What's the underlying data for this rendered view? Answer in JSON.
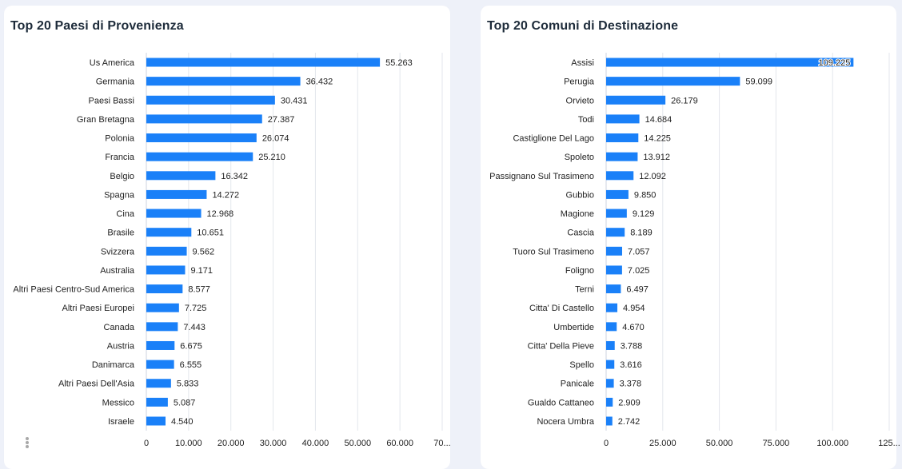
{
  "colors": {
    "bar": "#1a80f8",
    "title": "#1d2b3a",
    "background": "#eef1f9"
  },
  "panels": [
    {
      "title": "Top 20 Paesi di Provenienza",
      "menu_icon": "more-vertical-icon"
    },
    {
      "title": "Top 20 Comuni di Destinazione"
    }
  ],
  "chart_data": [
    {
      "type": "bar",
      "orientation": "horizontal",
      "title": "Top 20 Paesi di Provenienza",
      "xlabel": "",
      "ylabel": "",
      "xlim": [
        0,
        70000
      ],
      "grid": true,
      "x_ticks": [
        0,
        10000,
        20000,
        30000,
        40000,
        50000,
        60000,
        70000
      ],
      "x_tick_labels": [
        "0",
        "10.000",
        "20.000",
        "30.000",
        "40.000",
        "50.000",
        "60.000",
        "70..."
      ],
      "categories": [
        "Us America",
        "Germania",
        "Paesi Bassi",
        "Gran Bretagna",
        "Polonia",
        "Francia",
        "Belgio",
        "Spagna",
        "Cina",
        "Brasile",
        "Svizzera",
        "Australia",
        "Altri Paesi Centro-Sud America",
        "Altri Paesi Europei",
        "Canada",
        "Austria",
        "Danimarca",
        "Altri Paesi Dell'Asia",
        "Messico",
        "Israele"
      ],
      "values": [
        55263,
        36432,
        30431,
        27387,
        26074,
        25210,
        16342,
        14272,
        12968,
        10651,
        9562,
        9171,
        8577,
        7725,
        7443,
        6675,
        6555,
        5833,
        5087,
        4540
      ],
      "value_labels": [
        "55.263",
        "36.432",
        "30.431",
        "27.387",
        "26.074",
        "25.210",
        "16.342",
        "14.272",
        "12.968",
        "10.651",
        "9.562",
        "9.171",
        "8.577",
        "7.725",
        "7.443",
        "6.675",
        "6.555",
        "5.833",
        "5.087",
        "4.540"
      ]
    },
    {
      "type": "bar",
      "orientation": "horizontal",
      "title": "Top 20 Comuni di Destinazione",
      "xlabel": "",
      "ylabel": "",
      "xlim": [
        0,
        125000
      ],
      "grid": true,
      "x_ticks": [
        0,
        25000,
        50000,
        75000,
        100000,
        125000
      ],
      "x_tick_labels": [
        "0",
        "25.000",
        "50.000",
        "75.000",
        "100.000",
        "125..."
      ],
      "categories": [
        "Assisi",
        "Perugia",
        "Orvieto",
        "Todi",
        "Castiglione Del Lago",
        "Spoleto",
        "Passignano Sul Trasimeno",
        "Gubbio",
        "Magione",
        "Cascia",
        "Tuoro Sul Trasimeno",
        "Foligno",
        "Terni",
        "Citta' Di Castello",
        "Umbertide",
        "Citta' Della Pieve",
        "Spello",
        "Panicale",
        "Gualdo Cattaneo",
        "Nocera Umbra"
      ],
      "values": [
        109225,
        59099,
        26179,
        14684,
        14225,
        13912,
        12092,
        9850,
        9129,
        8189,
        7057,
        7025,
        6497,
        4954,
        4670,
        3788,
        3616,
        3378,
        2909,
        2742
      ],
      "value_labels": [
        "109.225",
        "59.099",
        "26.179",
        "14.684",
        "14.225",
        "13.912",
        "12.092",
        "9.850",
        "9.129",
        "8.189",
        "7.057",
        "7.025",
        "6.497",
        "4.954",
        "4.670",
        "3.788",
        "3.616",
        "3.378",
        "2.909",
        "2.742"
      ]
    }
  ]
}
